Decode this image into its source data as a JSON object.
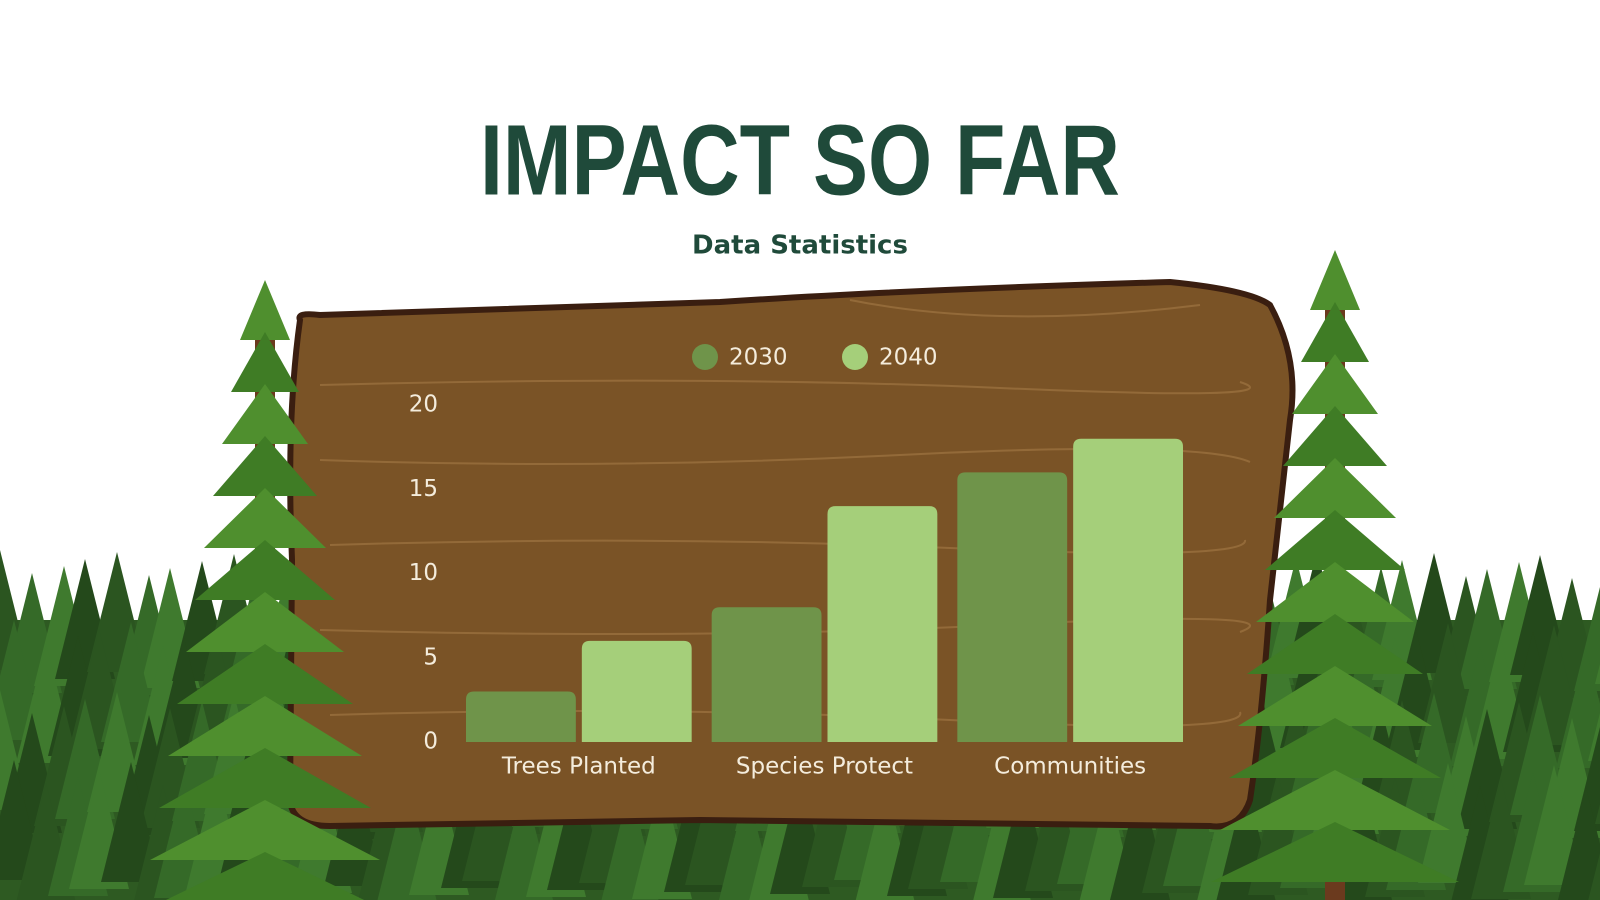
{
  "chart_data": {
    "type": "bar",
    "title": "IMPACT SO FAR",
    "subtitle": "Data Statistics",
    "categories": [
      "Trees Planted",
      "Species Protect",
      "Communities"
    ],
    "series": [
      {
        "name": "2030",
        "color": "#6f944a",
        "values": [
          3,
          8,
          16
        ]
      },
      {
        "name": "2040",
        "color": "#a5cf7a",
        "values": [
          6,
          14,
          18
        ]
      }
    ],
    "ylim": [
      0,
      20
    ],
    "yticks": [
      0,
      5,
      10,
      15,
      20
    ],
    "legend": "top"
  }
}
